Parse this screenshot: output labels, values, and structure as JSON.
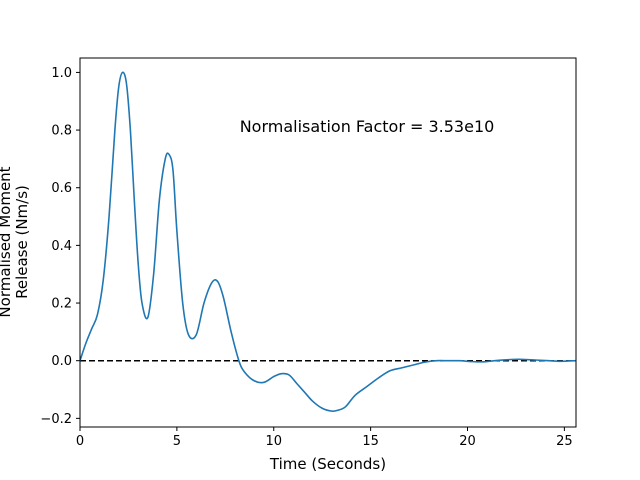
{
  "chart_data": {
    "type": "line",
    "title": "",
    "xlabel": "Time (Seconds)",
    "ylabel_lines": [
      "Normalised Moment",
      "Release (Nm/s)"
    ],
    "xlim": [
      0,
      25.6
    ],
    "ylim": [
      -0.23,
      1.05
    ],
    "xticks": [
      0,
      5,
      10,
      15,
      20,
      25
    ],
    "yticks": [
      -0.2,
      0.0,
      0.2,
      0.4,
      0.6,
      0.8,
      1.0
    ],
    "xtick_labels": [
      "0",
      "5",
      "10",
      "15",
      "20",
      "25"
    ],
    "ytick_labels": [
      "−0.2",
      "0.0",
      "0.2",
      "0.4",
      "0.6",
      "0.8",
      "1.0"
    ],
    "grid": false,
    "annotation": "Normalisation Factor = 3.53e10",
    "reference_line": {
      "y": 0.0,
      "style": "dashed",
      "color": "#000000"
    },
    "series": [
      {
        "color": "#1f77b4",
        "x": [
          0,
          0.3,
          0.6,
          0.9,
          1.2,
          1.5,
          1.8,
          2.0,
          2.2,
          2.4,
          2.6,
          2.8,
          3.0,
          3.2,
          3.5,
          3.8,
          4.1,
          4.4,
          4.6,
          4.8,
          5.0,
          5.3,
          5.6,
          6.0,
          6.4,
          6.8,
          7.1,
          7.4,
          7.8,
          8.2,
          8.5,
          9.0,
          9.5,
          10.0,
          10.4,
          10.8,
          11.2,
          11.6,
          12.0,
          12.5,
          13.0,
          13.3,
          13.7,
          14.2,
          14.8,
          15.4,
          16.0,
          16.6,
          17.2,
          17.8,
          18.4,
          19.0,
          19.6,
          20.2,
          20.8,
          21.4,
          22.0,
          22.6,
          23.0,
          23.6,
          24.2,
          24.8,
          25.6
        ],
        "y": [
          0.0,
          0.06,
          0.11,
          0.16,
          0.28,
          0.5,
          0.8,
          0.95,
          1.0,
          0.96,
          0.8,
          0.56,
          0.34,
          0.2,
          0.15,
          0.3,
          0.56,
          0.7,
          0.715,
          0.66,
          0.45,
          0.2,
          0.09,
          0.09,
          0.2,
          0.27,
          0.275,
          0.22,
          0.1,
          0.0,
          -0.04,
          -0.07,
          -0.075,
          -0.055,
          -0.045,
          -0.05,
          -0.08,
          -0.11,
          -0.14,
          -0.165,
          -0.175,
          -0.172,
          -0.16,
          -0.12,
          -0.09,
          -0.06,
          -0.035,
          -0.025,
          -0.015,
          -0.005,
          0.0,
          0.0,
          0.0,
          -0.003,
          -0.004,
          0.0,
          0.003,
          0.005,
          0.004,
          0.002,
          0.0,
          -0.002,
          0.0
        ]
      }
    ]
  }
}
